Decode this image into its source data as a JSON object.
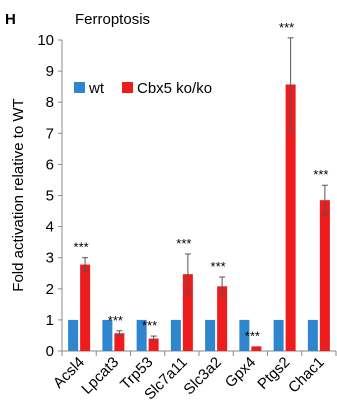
{
  "panel_label": "H",
  "chart_data": {
    "type": "bar",
    "title": "Ferroptosis",
    "ylabel": "Fold activation relative to WT",
    "xlabel": "",
    "ylim": [
      0,
      10
    ],
    "yticks": [
      "0",
      "1",
      "2",
      "3",
      "4",
      "5",
      "6",
      "7",
      "8",
      "9",
      "10"
    ],
    "grid": false,
    "legend_position": "top-left",
    "categories": [
      "Acsl4",
      "Lpcat3",
      "Trp53",
      "Slc7a11",
      "Slc3a2",
      "Gpx4",
      "Ptgs2",
      "Chac1"
    ],
    "series": [
      {
        "name": "wt",
        "color": "#2f86cf",
        "values": [
          1,
          1,
          1,
          1,
          1,
          1,
          1,
          1
        ]
      },
      {
        "name": "Cbx5 ko/ko",
        "color": "#ee1c1c",
        "values": [
          2.78,
          0.57,
          0.4,
          2.47,
          2.08,
          0.15,
          8.57,
          4.85
        ],
        "errors": [
          0.22,
          0.08,
          0.08,
          0.65,
          0.3,
          0.0,
          1.5,
          0.48
        ]
      }
    ],
    "annotations": [
      "***",
      "***",
      "***",
      "***",
      "***",
      "***",
      "***",
      "***"
    ]
  }
}
